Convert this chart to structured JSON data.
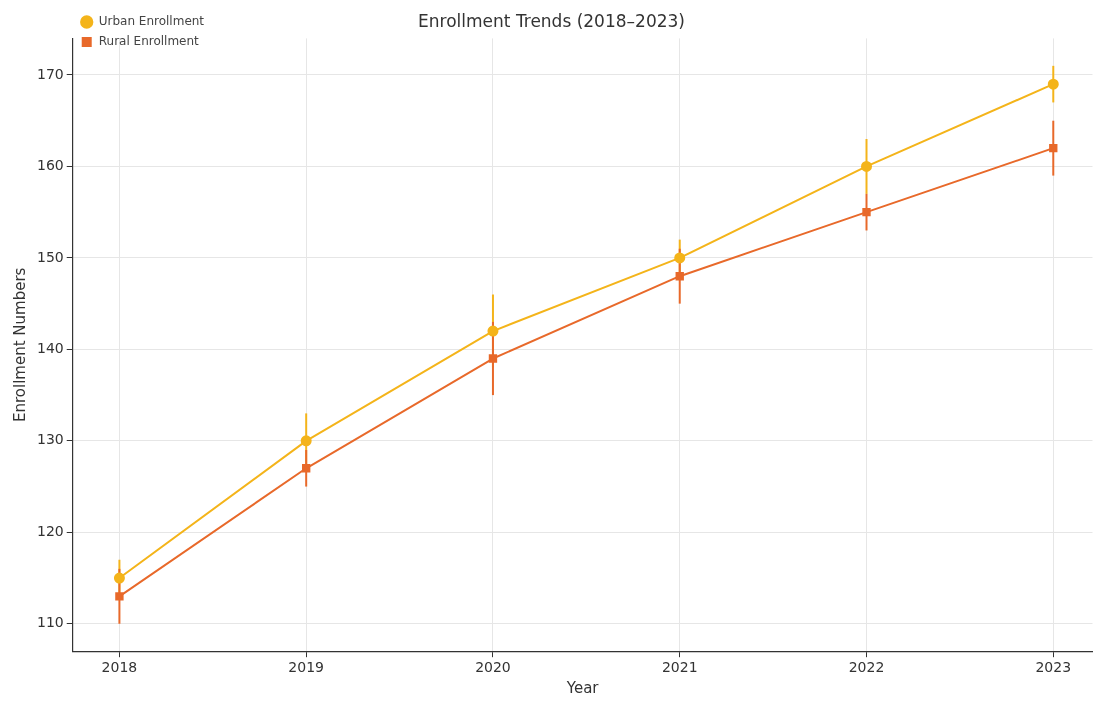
{
  "chart_data": {
    "type": "line",
    "title": "Enrollment Trends (2018–2023)",
    "xlabel": "Year",
    "ylabel": "Enrollment Numbers",
    "x": [
      2018,
      2019,
      2020,
      2021,
      2022,
      2023
    ],
    "xlim": [
      2017.75,
      2023.21
    ],
    "xticks": [
      2018,
      2019,
      2020,
      2021,
      2022,
      2023
    ],
    "ylim": [
      107,
      174
    ],
    "yticks": [
      110,
      120,
      130,
      140,
      150,
      160,
      170
    ],
    "grid": true,
    "legend": "top left",
    "line_style": "solid",
    "series": [
      {
        "name": "Urban Enrollment",
        "color": "#f4b41a",
        "marker": "circle",
        "values": [
          115,
          130,
          142,
          150,
          160,
          169
        ],
        "errors": [
          2,
          3,
          4,
          2,
          3,
          2
        ]
      },
      {
        "name": "Rural Enrollment",
        "color": "#e8692a",
        "marker": "square",
        "values": [
          113,
          127,
          139,
          148,
          155,
          162
        ],
        "errors": [
          3,
          2,
          4,
          3,
          2,
          3
        ]
      }
    ]
  }
}
